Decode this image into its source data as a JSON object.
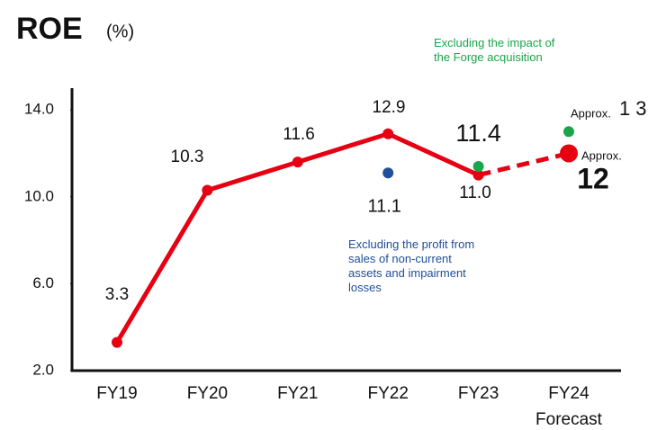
{
  "chart_data": {
    "type": "line",
    "title": "ROE",
    "unit": "(%)",
    "categories": [
      "FY19",
      "FY20",
      "FY21",
      "FY22",
      "FY23",
      "FY24"
    ],
    "forecast_label": "Forecast",
    "ylim": [
      2,
      15
    ],
    "yticks": [
      {
        "value": 2,
        "label": "2.0"
      },
      {
        "value": 6,
        "label": "6.0"
      },
      {
        "value": 10,
        "label": "10.0"
      },
      {
        "value": 14,
        "label": "14.0"
      }
    ],
    "approx_label": "Approx.",
    "series": [
      {
        "color": "#e60012",
        "values": [
          3.3,
          10.3,
          11.6,
          12.9,
          11.0,
          12
        ],
        "value_labels": [
          "3.3",
          "10.3",
          "11.6",
          "12.9",
          "11.0",
          "12"
        ]
      },
      {
        "name": "Excluding the profit from sales of non-current assets and impairment losses",
        "color": "#1f4e9c",
        "values": [
          null,
          null,
          null,
          11.1,
          null,
          null
        ]
      },
      {
        "name": "Excluding the impact of the Forge acquisition",
        "color": "#1aa54b",
        "values": [
          null,
          null,
          null,
          null,
          11.4,
          13
        ]
      }
    ]
  }
}
